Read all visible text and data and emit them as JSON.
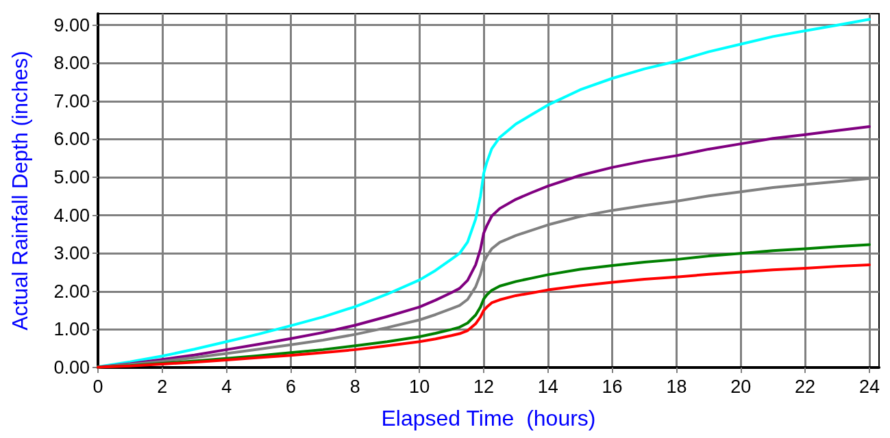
{
  "chart_data": {
    "type": "line",
    "xlabel": "Elapsed Time  (hours)",
    "ylabel": "Actual Rainfall Depth (inches)",
    "x": [
      0,
      1,
      2,
      3,
      4,
      5,
      6,
      7,
      8,
      9,
      10,
      10.5,
      11,
      11.25,
      11.5,
      11.75,
      11.9,
      12,
      12.1,
      12.25,
      12.5,
      13,
      13.5,
      14,
      15,
      16,
      17,
      18,
      19,
      20,
      21,
      22,
      23,
      24
    ],
    "series": [
      {
        "color": "#00ffff",
        "values": [
          0.02,
          0.15,
          0.3,
          0.48,
          0.68,
          0.88,
          1.1,
          1.33,
          1.6,
          1.93,
          2.3,
          2.55,
          2.85,
          3.0,
          3.3,
          3.9,
          4.5,
          5.1,
          5.4,
          5.75,
          6.05,
          6.4,
          6.65,
          6.9,
          7.3,
          7.6,
          7.85,
          8.05,
          8.3,
          8.5,
          8.7,
          8.85,
          9.0,
          9.15
        ]
      },
      {
        "color": "#800080",
        "values": [
          0.01,
          0.1,
          0.21,
          0.33,
          0.47,
          0.61,
          0.76,
          0.92,
          1.11,
          1.34,
          1.59,
          1.77,
          1.97,
          2.08,
          2.29,
          2.7,
          3.11,
          3.53,
          3.73,
          3.98,
          4.18,
          4.42,
          4.6,
          4.77,
          5.05,
          5.26,
          5.43,
          5.57,
          5.74,
          5.88,
          6.02,
          6.12,
          6.23,
          6.33
        ]
      },
      {
        "color": "#808080",
        "values": [
          0.01,
          0.08,
          0.16,
          0.26,
          0.37,
          0.48,
          0.6,
          0.72,
          0.87,
          1.05,
          1.25,
          1.39,
          1.55,
          1.63,
          1.79,
          2.12,
          2.45,
          2.77,
          2.93,
          3.12,
          3.29,
          3.47,
          3.61,
          3.75,
          3.97,
          4.13,
          4.26,
          4.37,
          4.51,
          4.62,
          4.73,
          4.81,
          4.89,
          4.97
        ]
      },
      {
        "color": "#008000",
        "values": [
          0.01,
          0.05,
          0.11,
          0.17,
          0.24,
          0.31,
          0.39,
          0.47,
          0.57,
          0.68,
          0.81,
          0.9,
          1.0,
          1.06,
          1.17,
          1.38,
          1.59,
          1.8,
          1.91,
          2.03,
          2.14,
          2.26,
          2.35,
          2.44,
          2.58,
          2.68,
          2.77,
          2.84,
          2.93,
          3.0,
          3.07,
          3.12,
          3.18,
          3.23
        ]
      },
      {
        "color": "#ff0000",
        "values": [
          0.01,
          0.04,
          0.09,
          0.14,
          0.2,
          0.26,
          0.32,
          0.39,
          0.47,
          0.57,
          0.68,
          0.75,
          0.84,
          0.89,
          0.97,
          1.15,
          1.33,
          1.5,
          1.59,
          1.7,
          1.78,
          1.89,
          1.96,
          2.04,
          2.15,
          2.24,
          2.32,
          2.38,
          2.45,
          2.51,
          2.57,
          2.61,
          2.66,
          2.7
        ]
      }
    ],
    "xlim": [
      0,
      24.3
    ],
    "xticks": [
      0,
      2,
      4,
      6,
      8,
      10,
      12,
      14,
      16,
      18,
      20,
      22,
      24
    ],
    "ylim": [
      0,
      9.3
    ],
    "yticks": [
      {
        "value": 0,
        "label": "0.00"
      },
      {
        "value": 1,
        "label": "1.00"
      },
      {
        "value": 2,
        "label": "2.00"
      },
      {
        "value": 3,
        "label": "3.00"
      },
      {
        "value": 4,
        "label": "4.00"
      },
      {
        "value": 5,
        "label": "5.00"
      },
      {
        "value": 6,
        "label": "6.00"
      },
      {
        "value": 7,
        "label": "7.00"
      },
      {
        "value": 8,
        "label": "8.00"
      },
      {
        "value": 9,
        "label": "9.00"
      }
    ],
    "grid": true,
    "marker": "none",
    "line_style": "solid"
  }
}
